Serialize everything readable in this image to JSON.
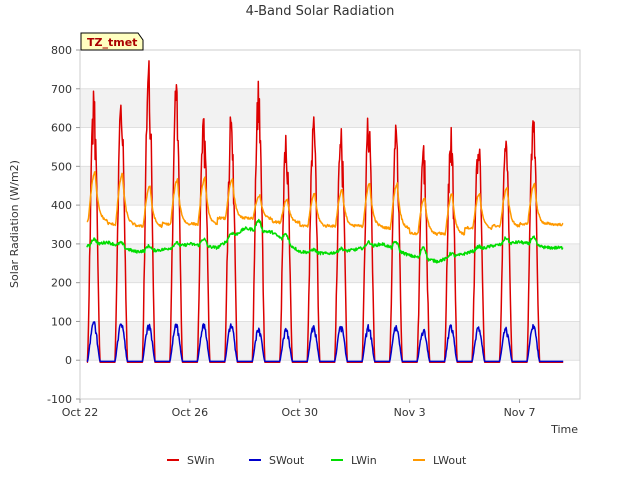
{
  "chart_data": {
    "type": "line",
    "title": "4-Band Solar Radiation",
    "xlabel": "Time",
    "ylabel": "Solar Radiation (W/m2)",
    "badge": "TZ_tmet",
    "ylim": [
      -100,
      800
    ],
    "xlim_days": [
      0,
      18.2
    ],
    "yticks": [
      -100,
      0,
      100,
      200,
      300,
      400,
      500,
      600,
      700,
      800
    ],
    "xticks": [
      {
        "label": "Oct 22",
        "day": 0
      },
      {
        "label": "Oct 26",
        "day": 4
      },
      {
        "label": "Oct 30",
        "day": 8
      },
      {
        "label": "Nov 3",
        "day": 12
      },
      {
        "label": "Nov 7",
        "day": 16
      }
    ],
    "grid": {
      "horizontal_bands": true
    },
    "legend_position": "bottom",
    "days": [
      "Oct 22",
      "Oct 23",
      "Oct 24",
      "Oct 25",
      "Oct 26",
      "Oct 27",
      "Oct 28",
      "Oct 29",
      "Oct 30",
      "Oct 31",
      "Nov 1",
      "Nov 2",
      "Nov 3",
      "Nov 4",
      "Nov 5",
      "Nov 6",
      "Nov 7",
      "Nov 8"
    ],
    "series": [
      {
        "name": "SWin",
        "color": "#dd0000",
        "kind": "solar",
        "base": -5,
        "daily_peak": [
          710,
          680,
          780,
          720,
          660,
          655,
          735,
          590,
          635,
          630,
          650,
          615,
          570,
          620,
          600,
          580,
          640,
          0
        ]
      },
      {
        "name": "SWout",
        "color": "#0000cc",
        "kind": "solar",
        "base": -3,
        "daily_peak": [
          105,
          100,
          100,
          98,
          98,
          98,
          88,
          85,
          93,
          93,
          95,
          93,
          85,
          95,
          90,
          88,
          95,
          0
        ]
      },
      {
        "name": "LWin",
        "color": "#00dd00",
        "kind": "level",
        "daily_level": [
          290,
          305,
          280,
          285,
          300,
          290,
          340,
          330,
          280,
          275,
          285,
          300,
          270,
          255,
          275,
          295,
          305,
          290
        ],
        "daily_noon_bump": [
          15,
          10,
          12,
          10,
          18,
          12,
          25,
          20,
          8,
          8,
          12,
          20,
          30,
          10,
          8,
          15,
          20,
          0
        ]
      },
      {
        "name": "LWout",
        "color": "#ff9900",
        "kind": "diurnal",
        "daily_night": [
          360,
          350,
          345,
          350,
          350,
          365,
          365,
          355,
          345,
          345,
          345,
          340,
          325,
          325,
          340,
          345,
          350,
          350
        ],
        "daily_peak": [
          485,
          480,
          450,
          465,
          470,
          465,
          425,
          415,
          430,
          440,
          455,
          455,
          420,
          430,
          430,
          445,
          455,
          0
        ]
      }
    ]
  }
}
